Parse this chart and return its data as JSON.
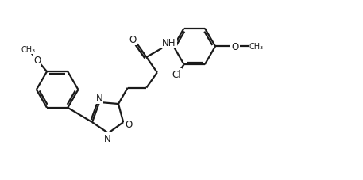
{
  "bg_color": "#ffffff",
  "line_color": "#1a1a1a",
  "line_width": 1.6,
  "font_size": 8.5,
  "fig_width": 4.57,
  "fig_height": 2.28,
  "dpi": 100,
  "xlim": [
    0,
    10
  ],
  "ylim": [
    0,
    5
  ]
}
